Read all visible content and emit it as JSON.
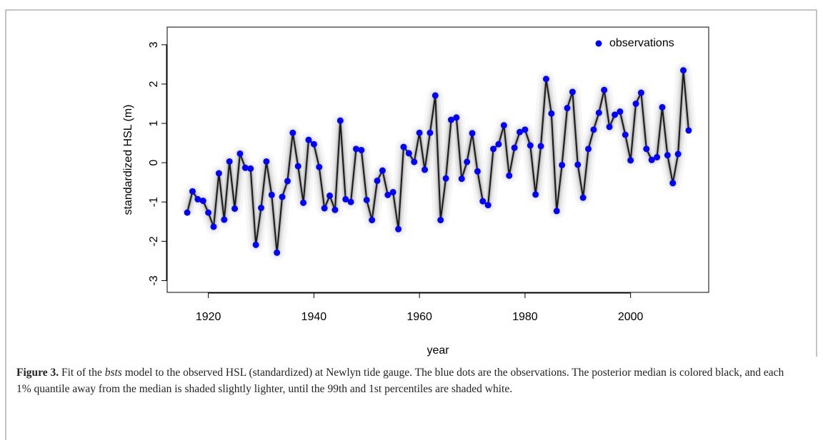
{
  "chart_data": {
    "type": "line",
    "xlabel": "year",
    "ylabel": "standardized HSL (m)",
    "x": [
      1916,
      1917,
      1918,
      1919,
      1920,
      1921,
      1922,
      1923,
      1924,
      1925,
      1926,
      1927,
      1928,
      1929,
      1930,
      1931,
      1932,
      1933,
      1934,
      1935,
      1936,
      1937,
      1938,
      1939,
      1940,
      1941,
      1942,
      1943,
      1944,
      1945,
      1946,
      1947,
      1948,
      1949,
      1950,
      1951,
      1952,
      1953,
      1954,
      1955,
      1956,
      1957,
      1958,
      1959,
      1960,
      1961,
      1962,
      1963,
      1964,
      1965,
      1966,
      1967,
      1968,
      1969,
      1970,
      1971,
      1972,
      1973,
      1974,
      1975,
      1976,
      1977,
      1978,
      1979,
      1980,
      1981,
      1982,
      1983,
      1984,
      1985,
      1986,
      1987,
      1988,
      1989,
      1990,
      1991,
      1992,
      1993,
      1994,
      1995,
      1996,
      1997,
      1998,
      1999,
      2000,
      2001,
      2002,
      2003,
      2004,
      2005,
      2006,
      2007,
      2008,
      2009,
      2010,
      2011
    ],
    "series": [
      {
        "name": "observations",
        "color": "#0000ff",
        "values": [
          -1.27,
          -0.73,
          -0.93,
          -0.97,
          -1.27,
          -1.63,
          -0.27,
          -1.45,
          0.03,
          -1.17,
          0.23,
          -0.13,
          -0.15,
          -2.09,
          -1.15,
          0.03,
          -0.82,
          -2.29,
          -0.87,
          -0.47,
          0.76,
          -0.09,
          -1.02,
          0.58,
          0.47,
          -0.11,
          -1.16,
          -0.84,
          -1.2,
          1.07,
          -0.93,
          -1.0,
          0.35,
          0.32,
          -0.95,
          -1.46,
          -0.46,
          -0.2,
          -0.82,
          -0.75,
          -1.69,
          0.4,
          0.24,
          0.02,
          0.76,
          -0.18,
          0.76,
          1.71,
          -1.46,
          -0.4,
          1.09,
          1.15,
          -0.41,
          0.02,
          0.75,
          -0.22,
          -0.98,
          -1.08,
          0.35,
          0.47,
          0.95,
          -0.33,
          0.38,
          0.78,
          0.84,
          0.44,
          -0.81,
          0.42,
          2.13,
          1.25,
          -1.23,
          -0.06,
          1.39,
          1.8,
          -0.05,
          -0.89,
          0.35,
          0.84,
          1.27,
          1.85,
          0.91,
          1.22,
          1.3,
          0.71,
          0.06,
          1.5,
          1.78,
          0.35,
          0.07,
          0.14,
          1.41,
          0.19,
          -0.52,
          0.22,
          2.35,
          0.82
        ]
      }
    ],
    "line_color": "#1a1a1a",
    "xlim": [
      1912.2,
      2014.8
    ],
    "xticks": [
      1920,
      1940,
      1960,
      1980,
      2000
    ],
    "ylim": [
      -3.3,
      3.45
    ],
    "yticks": [
      -3,
      -2,
      -1,
      0,
      1,
      2,
      3
    ],
    "legend": "topright"
  },
  "caption": {
    "label": "Figure 3.",
    "text_before": "Fit of the",
    "italic": "bsts",
    "text_after": "model to the observed HSL (standardized) at Newlyn tide gauge. The blue dots are the observations. The posterior median is colored black, and each 1% quantile away from the median is shaded slightly lighter, until the 99th and 1st percentiles are shaded white."
  }
}
